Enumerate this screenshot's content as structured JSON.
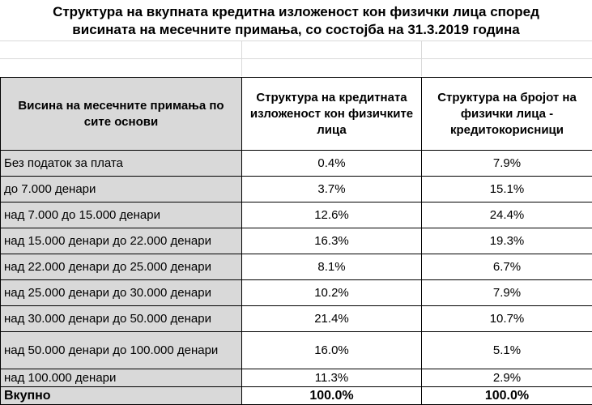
{
  "title": {
    "line1": "Структура на вкупната кредитна изложеност кон физички лица според",
    "line2": "висината на месечните примања, со состојба на 31.3.2019 година"
  },
  "table": {
    "headers": {
      "row_label": "Висина на месечните примања по сите основи",
      "col1": "Структура на кредитната изложеност кон физичките лица",
      "col2": "Структура на бројот на физички лица - кредитокорисници"
    },
    "rows": [
      {
        "label": "Без податок за плата",
        "col1": "0.4%",
        "col2": "7.9%"
      },
      {
        "label": "до 7.000 денари",
        "col1": "3.7%",
        "col2": "15.1%"
      },
      {
        "label": "над 7.000 до 15.000 денари",
        "col1": "12.6%",
        "col2": "24.4%"
      },
      {
        "label": "над 15.000 денари до 22.000 денари",
        "col1": "16.3%",
        "col2": "19.3%"
      },
      {
        "label": "над 22.000 денари до 25.000 денари",
        "col1": "8.1%",
        "col2": "6.7%"
      },
      {
        "label": "над 25.000 денари до 30.000 денари",
        "col1": "10.2%",
        "col2": "7.9%"
      },
      {
        "label": "над 30.000 денари до 50.000 денари",
        "col1": "21.4%",
        "col2": "10.7%"
      },
      {
        "label": "над 50.000 денари до 100.000 денари",
        "col1": "16.0%",
        "col2": "5.1%"
      },
      {
        "label": "над 100.000 денари",
        "col1": "11.3%",
        "col2": "2.9%"
      }
    ],
    "total": {
      "label": "Вкупно",
      "col1": "100.0%",
      "col2": "100.0%"
    }
  }
}
